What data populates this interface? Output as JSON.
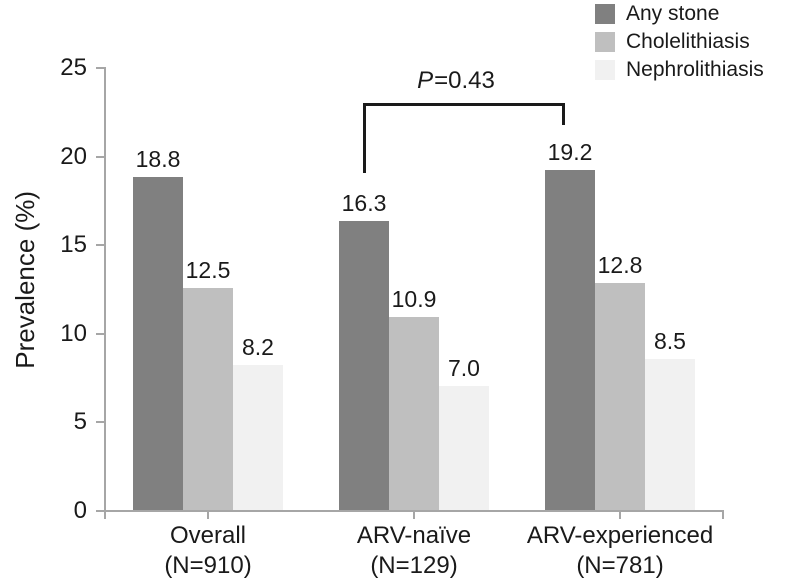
{
  "chart_data": {
    "type": "bar",
    "title": "",
    "ylabel": "Prevalence (%)",
    "xlabel": "",
    "ylim": [
      0,
      25
    ],
    "yticks": [
      0,
      5,
      10,
      15,
      20,
      25
    ],
    "grid": false,
    "legend_position": "top-right",
    "categories": [
      {
        "label": "Overall",
        "sublabel": "(N=910)"
      },
      {
        "label": "ARV-naïve",
        "sublabel": "(N=129)"
      },
      {
        "label": "ARV-experienced",
        "sublabel": "(N=781)"
      }
    ],
    "series": [
      {
        "name": "Any stone",
        "color": "#808080",
        "values": [
          18.8,
          16.3,
          19.2
        ],
        "labels": [
          "18.8",
          "16.3",
          "19.2"
        ]
      },
      {
        "name": "Cholelithiasis",
        "color": "#bfbfbf",
        "values": [
          12.5,
          10.9,
          12.8
        ],
        "labels": [
          "12.5",
          "10.9",
          "12.8"
        ]
      },
      {
        "name": "Nephrolithiasis",
        "color": "#f1f1f1",
        "values": [
          8.2,
          7.0,
          8.5
        ],
        "labels": [
          "8.2",
          "7.0",
          "8.5"
        ]
      }
    ],
    "annotation": {
      "italic": "P",
      "rest": "=0.43",
      "full_text": "P=0.43",
      "connects": [
        "ARV-naïve",
        "ARV-experienced"
      ],
      "connects_series": "Any stone"
    },
    "colors": {
      "axis": "#a6a6a6",
      "text": "#1a1a1a",
      "bracket": "#1a1a1a",
      "background": "#ffffff"
    }
  }
}
